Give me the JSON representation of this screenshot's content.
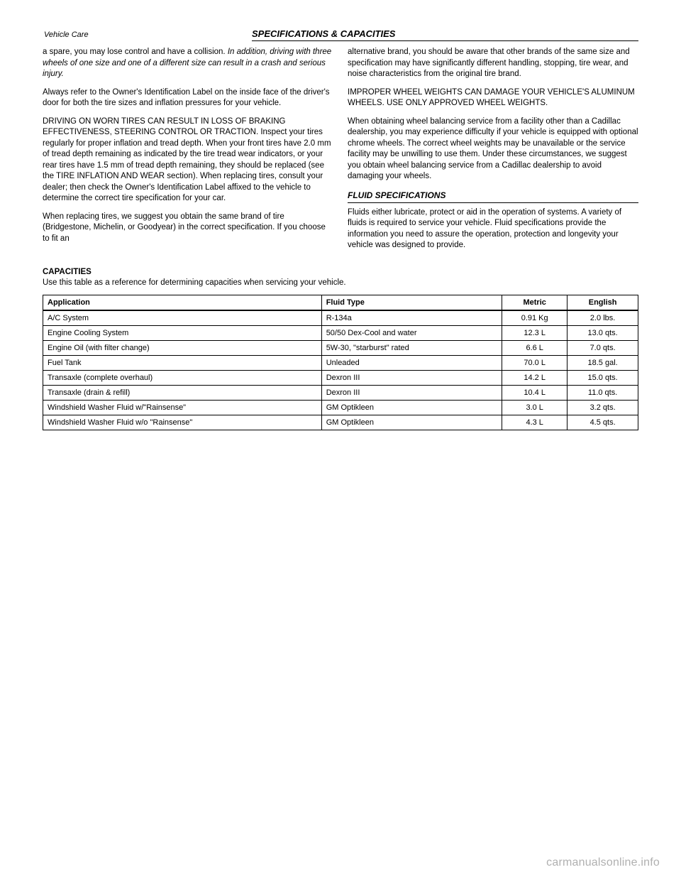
{
  "header": {
    "label": "Vehicle Care",
    "title": "SPECIFICATIONS & CAPACITIES"
  },
  "left_column": {
    "p1_pre": "a spare, you may lose control and have a collision. ",
    "p1_emph": "In addition, driving with three wheels of one size and one of a different size can result in a crash and serious injury.",
    "p2": "Always refer to the Owner's Identification Label on the inside face of the driver's door for both the tire sizes and inflation pressures for your vehicle.",
    "p3": "DRIVING ON WORN TIRES CAN RESULT IN LOSS OF BRAKING EFFECTIVENESS, STEERING CONTROL OR TRACTION. Inspect your tires regularly for proper inflation and tread depth. When your front tires have 2.0 mm of tread depth remaining as indicated by the tire tread wear indicators, or your rear tires have 1.5 mm of tread depth remaining, they should be replaced (see the TIRE INFLATION AND WEAR section). When replacing tires, consult your dealer; then check the Owner's Identification Label affixed to the vehicle to determine the correct tire specification for your car.",
    "p4": "When replacing tires, we suggest you obtain the same brand of tire (Bridgestone, Michelin, or Goodyear) in the correct specification. If you choose to fit an"
  },
  "right_column": {
    "p1": "alternative brand, you should be aware that other brands of the same size and specification may have significantly different handling, stopping, tire wear, and noise characteristics from the original tire brand.",
    "p2": "IMPROPER WHEEL WEIGHTS CAN DAMAGE YOUR VEHICLE'S ALUMINUM WHEELS. USE ONLY APPROVED WHEEL WEIGHTS.",
    "p3": "When obtaining wheel balancing service from a facility other than a Cadillac dealership, you may experience difficulty if your vehicle is equipped with optional chrome wheels. The correct wheel weights may be unavailable or the service facility may be unwilling to use them. Under these circumstances, we suggest you obtain wheel balancing service from a Cadillac dealership to avoid damaging your wheels.",
    "section_title": "FLUID SPECIFICATIONS",
    "p4": "Fluids either lubricate, protect or aid in the operation of systems. A variety of fluids is required to service your vehicle. Fluid specifications provide the information you need to assure the operation, protection and longevity your vehicle was designed to provide."
  },
  "capacities_title": "CAPACITIES",
  "capacities_text": "Use this table as a reference for determining capacities when servicing your vehicle.",
  "table": {
    "columns": [
      "Application",
      "Fluid Type",
      "Metric",
      "English"
    ],
    "rows": [
      [
        "A/C System",
        "R-134a",
        "0.91 Kg",
        "2.0 lbs."
      ],
      [
        "Engine Cooling System",
        "50/50 Dex-Cool and water",
        "12.3 L",
        "13.0 qts."
      ],
      [
        "Engine Oil (with filter change)",
        "5W-30, \"starburst\" rated",
        "6.6 L",
        "7.0 qts."
      ],
      [
        "Fuel Tank",
        "Unleaded",
        "70.0 L",
        "18.5 gal."
      ],
      [
        "Transaxle (complete overhaul)",
        "Dexron III",
        "14.2 L",
        "15.0 qts."
      ],
      [
        "Transaxle (drain & refill)",
        "Dexron III",
        "10.4 L",
        "11.0 qts."
      ],
      [
        "Windshield Washer Fluid w/\"Rainsense\"",
        "GM Optikleen",
        "3.0 L",
        "3.2 qts."
      ],
      [
        "Windshield Washer Fluid w/o \"Rainsense\"",
        "GM Optikleen",
        "4.3 L",
        "4.5 qts."
      ]
    ]
  },
  "watermark": "carmanualsonline.info"
}
